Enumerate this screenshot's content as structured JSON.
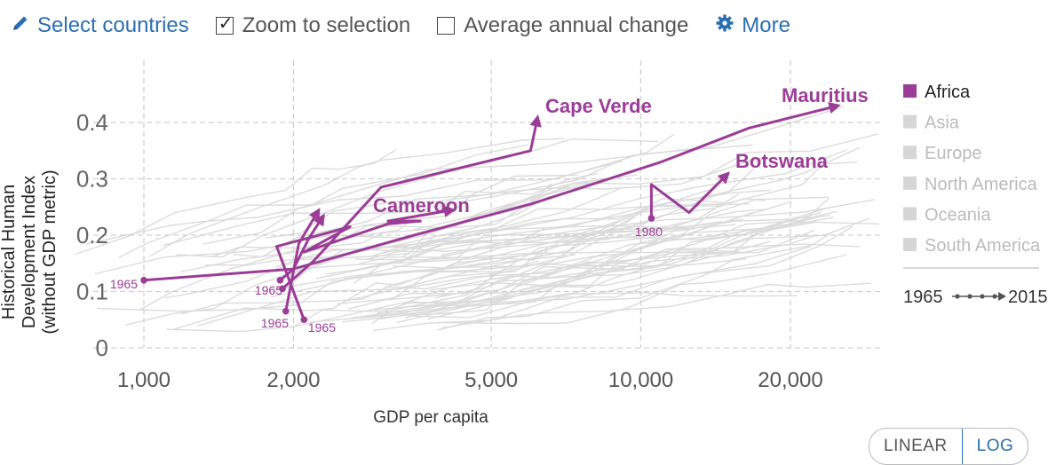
{
  "controls": {
    "select_label": "Select countries",
    "zoom_label": "Zoom to selection",
    "zoom_checked": true,
    "avg_label": "Average annual change",
    "avg_checked": false,
    "more_label": "More",
    "link_color": "#2a6fb3"
  },
  "chart_data": {
    "type": "scatter",
    "ylabel_lines": [
      "Historical Human",
      "Development Index",
      "(without GDP metric)"
    ],
    "xlabel": "GDP per capita",
    "x_scale": "log",
    "x_ticks": [
      1000,
      2000,
      5000,
      10000,
      20000
    ],
    "x_tick_labels": [
      "1,000",
      "2,000",
      "5,000",
      "10,000",
      "20,000"
    ],
    "y_ticks": [
      0,
      0.1,
      0.2,
      0.3,
      0.4
    ],
    "y_tick_labels": [
      "0",
      "0.1",
      "0.2",
      "0.3",
      "0.4"
    ],
    "grid": true,
    "highlight_color": "#9b3d96",
    "background_line_color": "#d8d8d8",
    "series": [
      {
        "name": "Mauritius",
        "points": [
          [
            1000,
            0.12
          ],
          [
            2000,
            0.14
          ],
          [
            3500,
            0.2
          ],
          [
            6000,
            0.255
          ],
          [
            11000,
            0.33
          ],
          [
            16500,
            0.39
          ],
          [
            25000,
            0.43
          ]
        ]
      },
      {
        "name": "Botswana",
        "points": [
          [
            10500,
            0.23
          ],
          [
            10500,
            0.29
          ],
          [
            12500,
            0.24
          ],
          [
            15000,
            0.31
          ]
        ]
      },
      {
        "name": "Cape Verde",
        "points": [
          [
            1900,
            0.105
          ],
          [
            2200,
            0.155
          ],
          [
            3000,
            0.285
          ],
          [
            6000,
            0.35
          ],
          [
            6200,
            0.41
          ]
        ]
      },
      {
        "name": "Cameroon",
        "points": [
          [
            2100,
            0.05
          ],
          [
            1850,
            0.18
          ],
          [
            2600,
            0.215
          ],
          [
            2100,
            0.17
          ],
          [
            3100,
            0.22
          ],
          [
            3600,
            0.225
          ],
          [
            3100,
            0.225
          ],
          [
            4200,
            0.245
          ]
        ]
      },
      {
        "name": "",
        "points": [
          [
            1930,
            0.065
          ],
          [
            2050,
            0.185
          ],
          [
            2250,
            0.245
          ]
        ]
      },
      {
        "name": "",
        "points": [
          [
            1880,
            0.12
          ],
          [
            2000,
            0.14
          ],
          [
            2150,
            0.195
          ],
          [
            2300,
            0.235
          ]
        ]
      }
    ],
    "country_labels": [
      "Mauritius",
      "Cape Verde",
      "Cameroon",
      "Botswana"
    ],
    "start_labels": [
      "1965",
      "1965",
      "1965",
      "1965",
      "1980"
    ],
    "legend": [
      "Africa",
      "Asia",
      "Europe",
      "North America",
      "Oceania",
      "South America"
    ],
    "legend_active": "Africa",
    "time_range": {
      "start": "1965",
      "end": "2015"
    }
  },
  "scale_toggle": {
    "linear": "LINEAR",
    "log": "LOG",
    "active": "LOG"
  }
}
